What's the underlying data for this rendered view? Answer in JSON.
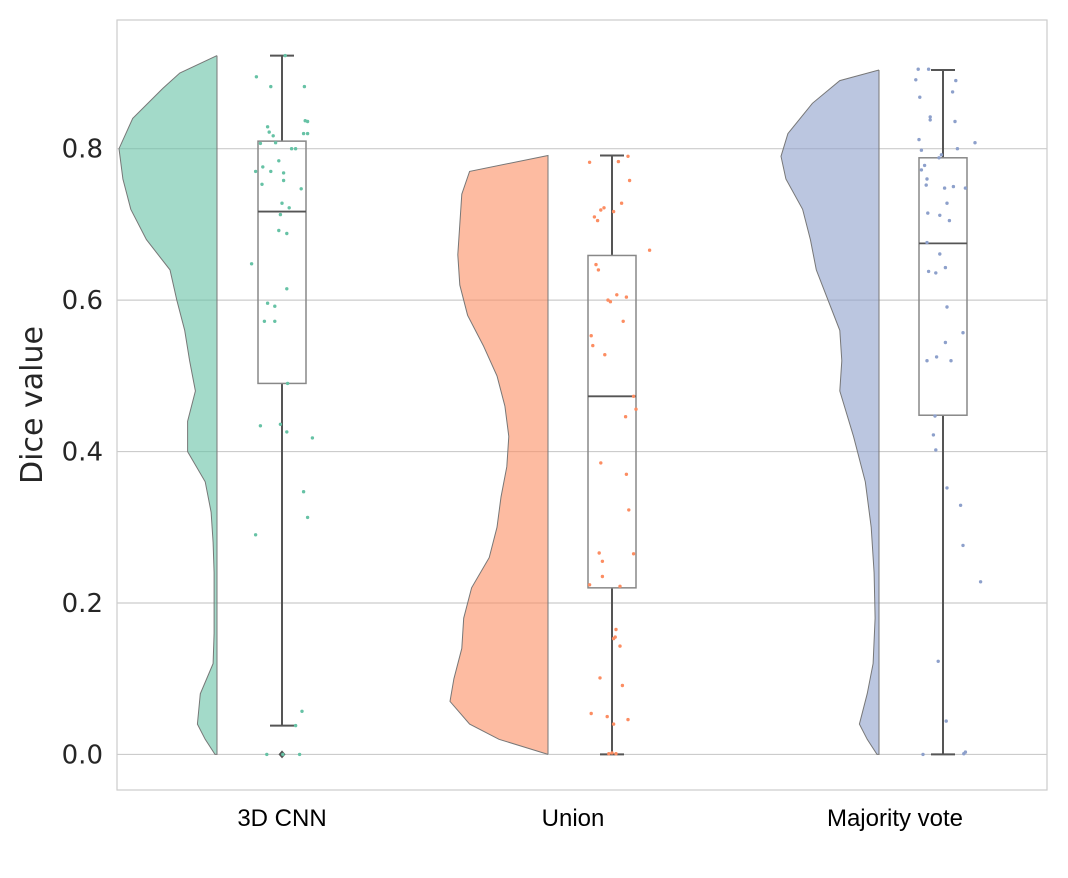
{
  "chart_data": {
    "type": "raincloud",
    "ylabel": "Dice value",
    "xlabel": "",
    "title": "",
    "ylim": [
      -0.047,
      0.97
    ],
    "yticks": [
      0.0,
      0.2,
      0.4,
      0.6,
      0.8
    ],
    "ytick_labels": [
      "0.0",
      "0.2",
      "0.4",
      "0.6",
      "0.8"
    ],
    "grid": "horizontal",
    "categories": [
      "3D CNN",
      "Union",
      "Majority vote"
    ],
    "colors": {
      "3D CNN": "#66c2a5",
      "Union": "#fc8d62",
      "Majority vote": "#8da0cb"
    },
    "series": [
      {
        "name": "3D CNN",
        "box": {
          "whisker_low": 0.038,
          "q1": 0.49,
          "median": 0.717,
          "q3": 0.81,
          "whisker_high": 0.923,
          "outliers": [
            0.0
          ]
        },
        "density": [
          [
            0.0,
            0.02
          ],
          [
            0.02,
            0.12
          ],
          [
            0.04,
            0.2
          ],
          [
            0.08,
            0.17
          ],
          [
            0.12,
            0.04
          ],
          [
            0.16,
            0.03
          ],
          [
            0.2,
            0.03
          ],
          [
            0.24,
            0.03
          ],
          [
            0.28,
            0.04
          ],
          [
            0.32,
            0.06
          ],
          [
            0.36,
            0.12
          ],
          [
            0.4,
            0.3
          ],
          [
            0.44,
            0.3
          ],
          [
            0.48,
            0.22
          ],
          [
            0.52,
            0.28
          ],
          [
            0.56,
            0.33
          ],
          [
            0.6,
            0.41
          ],
          [
            0.64,
            0.48
          ],
          [
            0.68,
            0.72
          ],
          [
            0.72,
            0.88
          ],
          [
            0.76,
            0.96
          ],
          [
            0.8,
            1.0
          ],
          [
            0.84,
            0.86
          ],
          [
            0.88,
            0.55
          ],
          [
            0.9,
            0.38
          ],
          [
            0.923,
            0.0
          ]
        ],
        "points": [
          [
            0.04,
            0.923
          ],
          [
            -0.32,
            0.895
          ],
          [
            -0.14,
            0.882
          ],
          [
            0.28,
            0.882
          ],
          [
            0.29,
            0.837
          ],
          [
            0.32,
            0.836
          ],
          [
            -0.18,
            0.829
          ],
          [
            -0.16,
            0.822
          ],
          [
            -0.11,
            0.817
          ],
          [
            0.27,
            0.82
          ],
          [
            0.32,
            0.82
          ],
          [
            -0.08,
            0.808
          ],
          [
            -0.27,
            0.807
          ],
          [
            0.12,
            0.8
          ],
          [
            0.17,
            0.8
          ],
          [
            -0.04,
            0.784
          ],
          [
            -0.33,
            0.77
          ],
          [
            0.02,
            0.768
          ],
          [
            -0.14,
            0.77
          ],
          [
            0.02,
            0.758
          ],
          [
            -0.25,
            0.753
          ],
          [
            0.24,
            0.747
          ],
          [
            -0.24,
            0.776
          ],
          [
            0.0,
            0.728
          ],
          [
            -0.02,
            0.713
          ],
          [
            0.09,
            0.722
          ],
          [
            -0.04,
            0.692
          ],
          [
            0.06,
            0.688
          ],
          [
            -0.38,
            0.648
          ],
          [
            0.06,
            0.615
          ],
          [
            -0.18,
            0.596
          ],
          [
            -0.09,
            0.592
          ],
          [
            -0.22,
            0.572
          ],
          [
            -0.09,
            0.572
          ],
          [
            0.07,
            0.49
          ],
          [
            -0.27,
            0.434
          ],
          [
            -0.02,
            0.436
          ],
          [
            0.06,
            0.426
          ],
          [
            0.38,
            0.418
          ],
          [
            0.27,
            0.347
          ],
          [
            0.32,
            0.313
          ],
          [
            -0.33,
            0.29
          ],
          [
            0.25,
            0.057
          ],
          [
            0.17,
            0.038
          ],
          [
            -0.19,
            0.0
          ],
          [
            0.22,
            0.0
          ],
          [
            0.01,
            0.0
          ]
        ]
      },
      {
        "name": "Union",
        "box": {
          "whisker_low": 0.0,
          "q1": 0.22,
          "median": 0.473,
          "q3": 0.659,
          "whisker_high": 0.791,
          "outliers": []
        },
        "density": [
          [
            0.0,
            0.0
          ],
          [
            0.02,
            0.5
          ],
          [
            0.04,
            0.8
          ],
          [
            0.07,
            1.0
          ],
          [
            0.1,
            0.96
          ],
          [
            0.14,
            0.88
          ],
          [
            0.18,
            0.86
          ],
          [
            0.22,
            0.78
          ],
          [
            0.26,
            0.6
          ],
          [
            0.3,
            0.52
          ],
          [
            0.34,
            0.48
          ],
          [
            0.38,
            0.42
          ],
          [
            0.42,
            0.4
          ],
          [
            0.46,
            0.44
          ],
          [
            0.5,
            0.52
          ],
          [
            0.54,
            0.66
          ],
          [
            0.58,
            0.82
          ],
          [
            0.62,
            0.9
          ],
          [
            0.66,
            0.92
          ],
          [
            0.7,
            0.9
          ],
          [
            0.74,
            0.88
          ],
          [
            0.77,
            0.8
          ],
          [
            0.791,
            0.0
          ]
        ],
        "points": [
          [
            0.2,
            0.79
          ],
          [
            0.08,
            0.783
          ],
          [
            -0.28,
            0.782
          ],
          [
            0.22,
            0.758
          ],
          [
            0.12,
            0.728
          ],
          [
            -0.1,
            0.722
          ],
          [
            0.02,
            0.717
          ],
          [
            -0.14,
            0.719
          ],
          [
            -0.22,
            0.71
          ],
          [
            -0.18,
            0.705
          ],
          [
            0.47,
            0.666
          ],
          [
            -0.2,
            0.647
          ],
          [
            -0.17,
            0.64
          ],
          [
            0.06,
            0.607
          ],
          [
            0.18,
            0.604
          ],
          [
            -0.05,
            0.6
          ],
          [
            -0.02,
            0.598
          ],
          [
            0.14,
            0.572
          ],
          [
            -0.26,
            0.553
          ],
          [
            -0.24,
            0.54
          ],
          [
            -0.09,
            0.528
          ],
          [
            0.27,
            0.473
          ],
          [
            0.3,
            0.456
          ],
          [
            0.17,
            0.446
          ],
          [
            -0.14,
            0.385
          ],
          [
            0.18,
            0.37
          ],
          [
            0.21,
            0.323
          ],
          [
            0.27,
            0.265
          ],
          [
            -0.16,
            0.266
          ],
          [
            -0.12,
            0.255
          ],
          [
            -0.12,
            0.235
          ],
          [
            -0.28,
            0.224
          ],
          [
            0.1,
            0.222
          ],
          [
            0.05,
            0.165
          ],
          [
            0.04,
            0.155
          ],
          [
            0.02,
            0.153
          ],
          [
            0.1,
            0.143
          ],
          [
            -0.15,
            0.101
          ],
          [
            0.13,
            0.091
          ],
          [
            -0.26,
            0.054
          ],
          [
            -0.06,
            0.05
          ],
          [
            0.2,
            0.046
          ],
          [
            0.02,
            0.04
          ],
          [
            0.0,
            0.002
          ],
          [
            -0.04,
            0.001
          ],
          [
            0.05,
            0.001
          ]
        ]
      },
      {
        "name": "Majority vote",
        "box": {
          "whisker_low": 0.0,
          "q1": 0.448,
          "median": 0.675,
          "q3": 0.788,
          "whisker_high": 0.904,
          "outliers": []
        },
        "density": [
          [
            0.0,
            0.02
          ],
          [
            0.02,
            0.12
          ],
          [
            0.04,
            0.2
          ],
          [
            0.08,
            0.12
          ],
          [
            0.12,
            0.06
          ],
          [
            0.18,
            0.04
          ],
          [
            0.24,
            0.05
          ],
          [
            0.3,
            0.08
          ],
          [
            0.36,
            0.14
          ],
          [
            0.42,
            0.26
          ],
          [
            0.48,
            0.4
          ],
          [
            0.52,
            0.38
          ],
          [
            0.56,
            0.4
          ],
          [
            0.6,
            0.52
          ],
          [
            0.64,
            0.64
          ],
          [
            0.68,
            0.7
          ],
          [
            0.72,
            0.78
          ],
          [
            0.76,
            0.95
          ],
          [
            0.79,
            1.0
          ],
          [
            0.82,
            0.93
          ],
          [
            0.86,
            0.68
          ],
          [
            0.89,
            0.4
          ],
          [
            0.904,
            0.0
          ]
        ],
        "points": [
          [
            -0.31,
            0.905
          ],
          [
            -0.18,
            0.905
          ],
          [
            -0.34,
            0.891
          ],
          [
            0.16,
            0.89
          ],
          [
            -0.29,
            0.868
          ],
          [
            0.12,
            0.875
          ],
          [
            -0.16,
            0.842
          ],
          [
            -0.16,
            0.838
          ],
          [
            0.15,
            0.836
          ],
          [
            0.4,
            0.808
          ],
          [
            -0.3,
            0.812
          ],
          [
            -0.27,
            0.798
          ],
          [
            -0.02,
            0.792
          ],
          [
            -0.05,
            0.788
          ],
          [
            0.18,
            0.8
          ],
          [
            -0.23,
            0.778
          ],
          [
            -0.27,
            0.772
          ],
          [
            -0.2,
            0.76
          ],
          [
            -0.21,
            0.752
          ],
          [
            0.13,
            0.75
          ],
          [
            0.02,
            0.748
          ],
          [
            0.28,
            0.748
          ],
          [
            0.05,
            0.728
          ],
          [
            -0.04,
            0.712
          ],
          [
            -0.19,
            0.715
          ],
          [
            0.08,
            0.705
          ],
          [
            -0.2,
            0.676
          ],
          [
            -0.04,
            0.661
          ],
          [
            0.03,
            0.643
          ],
          [
            -0.18,
            0.638
          ],
          [
            -0.09,
            0.636
          ],
          [
            0.05,
            0.591
          ],
          [
            0.25,
            0.557
          ],
          [
            0.03,
            0.544
          ],
          [
            -0.08,
            0.525
          ],
          [
            -0.2,
            0.52
          ],
          [
            0.1,
            0.52
          ],
          [
            -0.1,
            0.447
          ],
          [
            -0.12,
            0.422
          ],
          [
            -0.09,
            0.402
          ],
          [
            0.05,
            0.352
          ],
          [
            0.22,
            0.329
          ],
          [
            0.25,
            0.276
          ],
          [
            0.47,
            0.228
          ],
          [
            -0.06,
            0.123
          ],
          [
            0.04,
            0.044
          ],
          [
            -0.25,
            0.0
          ],
          [
            0.26,
            0.001
          ],
          [
            0.28,
            0.003
          ]
        ]
      }
    ]
  }
}
